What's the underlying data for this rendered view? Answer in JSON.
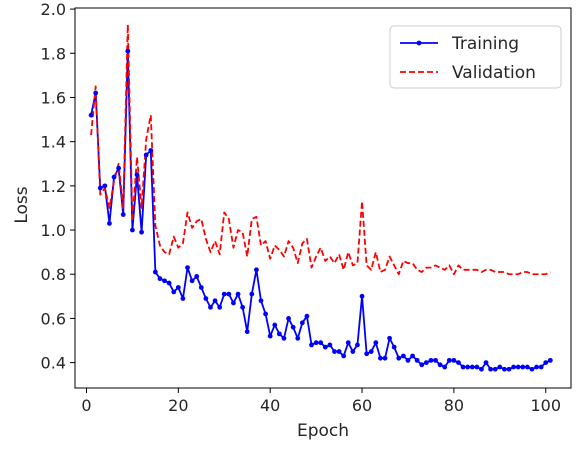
{
  "chart_data": {
    "type": "line",
    "title": "",
    "xlabel": "Epoch",
    "ylabel": "Loss",
    "xlim": [
      -2.5,
      105.5
    ],
    "ylim": [
      0.285,
      2.005
    ],
    "xticks": [
      0,
      20,
      40,
      60,
      80,
      100
    ],
    "yticks": [
      0.4,
      0.6,
      0.8,
      1.0,
      1.2,
      1.4,
      1.6,
      1.8,
      2.0
    ],
    "grid": false,
    "legend_position": "top-right",
    "series": [
      {
        "name": "Training",
        "color": "#0000ff",
        "style": "solid",
        "marker": "circle",
        "x": [
          1,
          2,
          3,
          4,
          5,
          6,
          7,
          8,
          9,
          10,
          11,
          12,
          13,
          14,
          15,
          16,
          17,
          18,
          19,
          20,
          21,
          22,
          23,
          24,
          25,
          26,
          27,
          28,
          29,
          30,
          31,
          32,
          33,
          34,
          35,
          36,
          37,
          38,
          39,
          40,
          41,
          42,
          43,
          44,
          45,
          46,
          47,
          48,
          49,
          50,
          51,
          52,
          53,
          54,
          55,
          56,
          57,
          58,
          59,
          60,
          61,
          62,
          63,
          64,
          65,
          66,
          67,
          68,
          69,
          70,
          71,
          72,
          73,
          74,
          75,
          76,
          77,
          78,
          79,
          80,
          81,
          82,
          83,
          84,
          85,
          86,
          87,
          88,
          89,
          90,
          91,
          92,
          93,
          94,
          95,
          96,
          97,
          98,
          99,
          100,
          101
        ],
        "y": [
          1.52,
          1.62,
          1.19,
          1.2,
          1.03,
          1.24,
          1.28,
          1.07,
          1.81,
          1.0,
          1.25,
          0.99,
          1.34,
          1.36,
          0.81,
          0.78,
          0.77,
          0.76,
          0.72,
          0.74,
          0.69,
          0.83,
          0.77,
          0.79,
          0.74,
          0.69,
          0.65,
          0.68,
          0.65,
          0.71,
          0.71,
          0.67,
          0.71,
          0.65,
          0.54,
          0.71,
          0.82,
          0.68,
          0.62,
          0.52,
          0.57,
          0.53,
          0.51,
          0.6,
          0.56,
          0.51,
          0.58,
          0.61,
          0.48,
          0.49,
          0.49,
          0.47,
          0.48,
          0.45,
          0.45,
          0.43,
          0.49,
          0.45,
          0.48,
          0.7,
          0.44,
          0.45,
          0.49,
          0.42,
          0.42,
          0.51,
          0.47,
          0.42,
          0.43,
          0.41,
          0.43,
          0.41,
          0.39,
          0.4,
          0.41,
          0.41,
          0.39,
          0.38,
          0.41,
          0.41,
          0.4,
          0.38,
          0.38,
          0.38,
          0.38,
          0.37,
          0.4,
          0.37,
          0.37,
          0.38,
          0.37,
          0.37,
          0.38,
          0.38,
          0.38,
          0.38,
          0.37,
          0.38,
          0.38,
          0.4,
          0.41
        ]
      },
      {
        "name": "Validation",
        "color": "#ff0000",
        "style": "dashed",
        "marker": "none",
        "x": [
          1,
          2,
          3,
          4,
          5,
          6,
          7,
          8,
          9,
          10,
          11,
          12,
          13,
          14,
          15,
          16,
          17,
          18,
          19,
          20,
          21,
          22,
          23,
          24,
          25,
          26,
          27,
          28,
          29,
          30,
          31,
          32,
          33,
          34,
          35,
          36,
          37,
          38,
          39,
          40,
          41,
          42,
          43,
          44,
          45,
          46,
          47,
          48,
          49,
          50,
          51,
          52,
          53,
          54,
          55,
          56,
          57,
          58,
          59,
          60,
          61,
          62,
          63,
          64,
          65,
          66,
          67,
          68,
          69,
          70,
          71,
          72,
          73,
          74,
          75,
          76,
          77,
          78,
          79,
          80,
          81,
          82,
          83,
          84,
          85,
          86,
          87,
          88,
          89,
          90,
          91,
          92,
          93,
          94,
          95,
          96,
          97,
          98,
          99,
          100,
          101
        ],
        "y": [
          1.43,
          1.65,
          1.16,
          1.19,
          1.1,
          1.22,
          1.3,
          1.1,
          1.93,
          1.04,
          1.33,
          1.1,
          1.41,
          1.52,
          1.02,
          0.93,
          0.9,
          0.89,
          0.97,
          0.92,
          0.94,
          1.08,
          1.01,
          1.04,
          1.05,
          0.96,
          0.9,
          0.95,
          0.89,
          1.08,
          1.05,
          0.92,
          1.0,
          0.99,
          0.88,
          1.05,
          1.06,
          0.93,
          0.95,
          0.87,
          0.93,
          0.91,
          0.88,
          0.95,
          0.92,
          0.85,
          0.94,
          0.96,
          0.83,
          0.88,
          0.92,
          0.86,
          0.88,
          0.85,
          0.89,
          0.82,
          0.9,
          0.84,
          0.85,
          1.13,
          0.84,
          0.82,
          0.9,
          0.81,
          0.82,
          0.88,
          0.84,
          0.8,
          0.86,
          0.85,
          0.85,
          0.82,
          0.81,
          0.83,
          0.83,
          0.84,
          0.83,
          0.82,
          0.84,
          0.8,
          0.84,
          0.82,
          0.82,
          0.82,
          0.82,
          0.81,
          0.82,
          0.82,
          0.81,
          0.81,
          0.81,
          0.8,
          0.8,
          0.8,
          0.81,
          0.81,
          0.8,
          0.8,
          0.8,
          0.8,
          0.81
        ]
      }
    ]
  }
}
